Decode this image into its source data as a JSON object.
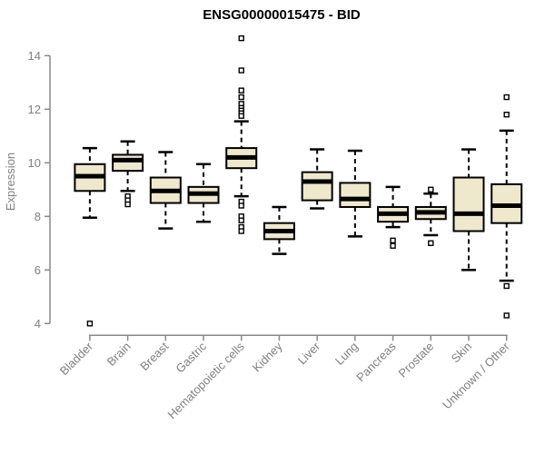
{
  "chart_data": {
    "type": "boxplot",
    "title": "ENSG00000015475 - BID",
    "xlabel": "",
    "ylabel": "Expression",
    "ylim": [
      4,
      14
    ],
    "yticks": [
      4,
      6,
      8,
      10,
      12,
      14
    ],
    "grid": false,
    "legend": false,
    "categories": [
      "Bladder",
      "Brain",
      "Breast",
      "Gastric",
      "Hematopoietic cells",
      "Kidney",
      "Liver",
      "Lung",
      "Pancreas",
      "Prostate",
      "Skin",
      "Unknown / Other"
    ],
    "series": [
      {
        "category": "Bladder",
        "low": 7.95,
        "q1": 8.95,
        "median": 9.5,
        "q3": 9.95,
        "high": 10.55,
        "outliers": [
          4.0
        ]
      },
      {
        "category": "Brain",
        "low": 8.95,
        "q1": 9.7,
        "median": 10.1,
        "q3": 10.3,
        "high": 10.8,
        "outliers": [
          8.75,
          8.6,
          8.45
        ]
      },
      {
        "category": "Breast",
        "low": 7.55,
        "q1": 8.5,
        "median": 8.95,
        "q3": 9.45,
        "high": 10.4,
        "outliers": []
      },
      {
        "category": "Gastric",
        "low": 7.8,
        "q1": 8.5,
        "median": 8.85,
        "q3": 9.1,
        "high": 9.95,
        "outliers": []
      },
      {
        "category": "Hematopoietic cells",
        "low": 8.75,
        "q1": 9.8,
        "median": 10.2,
        "q3": 10.55,
        "high": 11.55,
        "outliers": [
          14.65,
          13.45,
          12.7,
          12.45,
          12.2,
          12.05,
          11.95,
          11.85,
          11.75,
          8.55,
          8.4,
          8.0,
          7.85,
          7.6,
          7.45
        ]
      },
      {
        "category": "Kidney",
        "low": 6.6,
        "q1": 7.15,
        "median": 7.45,
        "q3": 7.75,
        "high": 8.35,
        "outliers": []
      },
      {
        "category": "Liver",
        "low": 8.3,
        "q1": 8.6,
        "median": 9.3,
        "q3": 9.65,
        "high": 10.5,
        "outliers": []
      },
      {
        "category": "Lung",
        "low": 7.25,
        "q1": 8.35,
        "median": 8.65,
        "q3": 9.25,
        "high": 10.45,
        "outliers": []
      },
      {
        "category": "Pancreas",
        "low": 7.6,
        "q1": 7.8,
        "median": 8.1,
        "q3": 8.35,
        "high": 9.1,
        "outliers": [
          7.1,
          6.9
        ]
      },
      {
        "category": "Prostate",
        "low": 7.3,
        "q1": 7.9,
        "median": 8.15,
        "q3": 8.35,
        "high": 8.85,
        "outliers": [
          9.0,
          7.0
        ]
      },
      {
        "category": "Skin",
        "low": 6.0,
        "q1": 7.45,
        "median": 8.1,
        "q3": 9.45,
        "high": 10.5,
        "outliers": []
      },
      {
        "category": "Unknown / Other",
        "low": 5.6,
        "q1": 7.75,
        "median": 8.4,
        "q3": 9.2,
        "high": 11.2,
        "outliers": [
          12.45,
          11.8,
          5.4,
          4.3
        ]
      }
    ],
    "colors": {
      "box_fill": "#EEE8CD",
      "line": "#000000",
      "axis": "#888888",
      "text_gray": "#808080",
      "title": "#000000",
      "background": "#ffffff"
    }
  }
}
